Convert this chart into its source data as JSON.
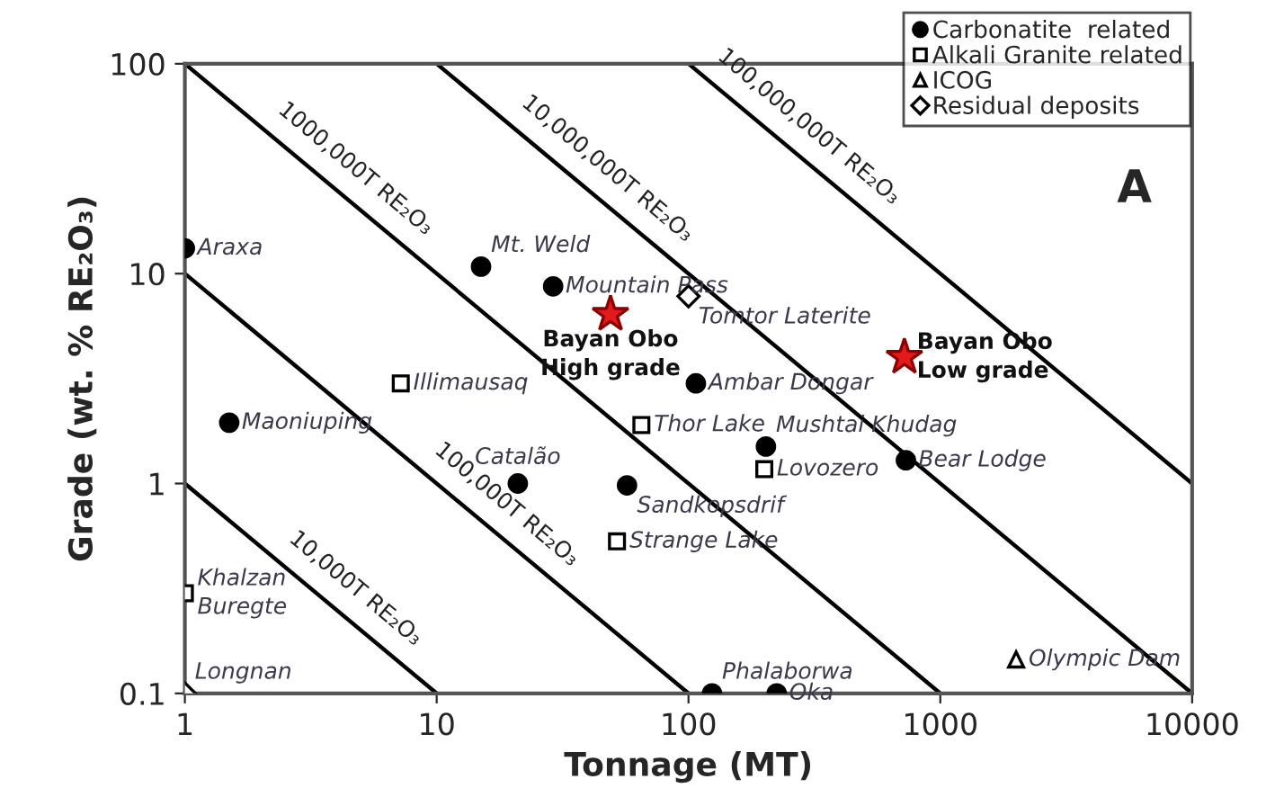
{
  "chart_data": {
    "type": "scatter",
    "xlabel": "Tonnage (MT)",
    "ylabel": "Grade (wt. % RE₂O₃)",
    "log": "xy",
    "xlim": [
      1,
      10000
    ],
    "ylim": [
      0.1,
      100
    ],
    "xticks": [
      1,
      10,
      100,
      1000,
      10000
    ],
    "yticks": [
      0.1,
      1,
      10,
      100
    ],
    "grid": false,
    "legend": "top right",
    "series": [
      {
        "name": "Carbonatite  related",
        "color": "#000000",
        "marker": "circle",
        "x": [
          1,
          15,
          29,
          107,
          1.5,
          203,
          730,
          21,
          57,
          124,
          224
        ],
        "values": [
          13.2,
          10.8,
          8.7,
          3.0,
          1.95,
          1.5,
          1.29,
          1.0,
          0.98,
          0.1,
          0.1
        ]
      },
      {
        "name": "Alkali Granite related",
        "color": "#000000",
        "marker": "square",
        "x": [
          7.2,
          65,
          200,
          52,
          1
        ],
        "values": [
          3.0,
          1.9,
          1.17,
          0.53,
          0.3
        ]
      },
      {
        "name": "ICOG",
        "color": "#000000",
        "marker": "triangle",
        "x": [
          2000
        ],
        "values": [
          0.145
        ]
      },
      {
        "name": "Residual deposits",
        "color": "#000000",
        "marker": "diamond",
        "x": [
          100,
          1
        ],
        "values": [
          7.8,
          0.1
        ]
      },
      {
        "color": "#e31a1c",
        "marker": "star",
        "x": [
          49,
          720
        ],
        "values": [
          6.4,
          4.0
        ]
      },
      {
        "type": "line",
        "name": "10,000T RE₂O₃",
        "color": "#000000",
        "x": [
          1,
          10
        ],
        "values": [
          1,
          0.1
        ]
      },
      {
        "type": "line",
        "name": "100,000T RE₂O₃",
        "color": "#000000",
        "x": [
          1,
          100
        ],
        "values": [
          10,
          0.1
        ]
      },
      {
        "type": "line",
        "name": "1000,000T RE₂O₃",
        "color": "#000000",
        "x": [
          1,
          1000
        ],
        "values": [
          100,
          0.1
        ]
      },
      {
        "type": "line",
        "name": "10,000,000T RE₂O₃",
        "color": "#000000",
        "x": [
          10,
          10000
        ],
        "values": [
          100,
          0.1
        ]
      },
      {
        "type": "line",
        "name": "100,000,000T RE₂O₃",
        "color": "#000000",
        "x": [
          100,
          10000
        ],
        "values": [
          100,
          1
        ]
      }
    ],
    "annotations": [
      "A",
      {
        "text": "Araxa",
        "x": 1,
        "y": 13.2
      },
      {
        "text": "Mt. Weld",
        "x": 15,
        "y": 10.8
      },
      {
        "text": "Mountain Pass",
        "x": 29,
        "y": 8.7
      },
      {
        "text": "Tomtor Laterite",
        "x": 100,
        "y": 7.8
      },
      {
        "text": "Bayan Obo\nHigh grade",
        "x": 49,
        "y": 6.4
      },
      {
        "text": "Ambar Dongar",
        "x": 107,
        "y": 3.0
      },
      {
        "text": "Bayan Obo\nLow grade",
        "x": 720,
        "y": 4.0
      },
      {
        "text": "Illimausaq",
        "x": 7.2,
        "y": 3.0
      },
      {
        "text": "Thor Lake",
        "x": 65,
        "y": 1.9
      },
      {
        "text": "Maoniuping",
        "x": 1.5,
        "y": 1.95
      },
      {
        "text": "Mushtai Khudag",
        "x": 203,
        "y": 1.5
      },
      {
        "text": "Lovozero",
        "x": 200,
        "y": 1.17
      },
      {
        "text": "Bear Lodge",
        "x": 730,
        "y": 1.29
      },
      {
        "text": "Catalão",
        "x": 21,
        "y": 1.0
      },
      {
        "text": "Sandkopsdrif",
        "x": 57,
        "y": 0.98
      },
      {
        "text": "Strange Lake",
        "x": 52,
        "y": 0.53
      },
      {
        "text": "Khalzan\nBuregte",
        "x": 1,
        "y": 0.3
      },
      {
        "text": "Longnan",
        "x": 1,
        "y": 0.1
      },
      {
        "text": "Phalaborwa",
        "x": 124,
        "y": 0.1
      },
      {
        "text": "Oka",
        "x": 224,
        "y": 0.1
      },
      {
        "text": "Olympic Dam",
        "x": 2000,
        "y": 0.145
      }
    ]
  }
}
